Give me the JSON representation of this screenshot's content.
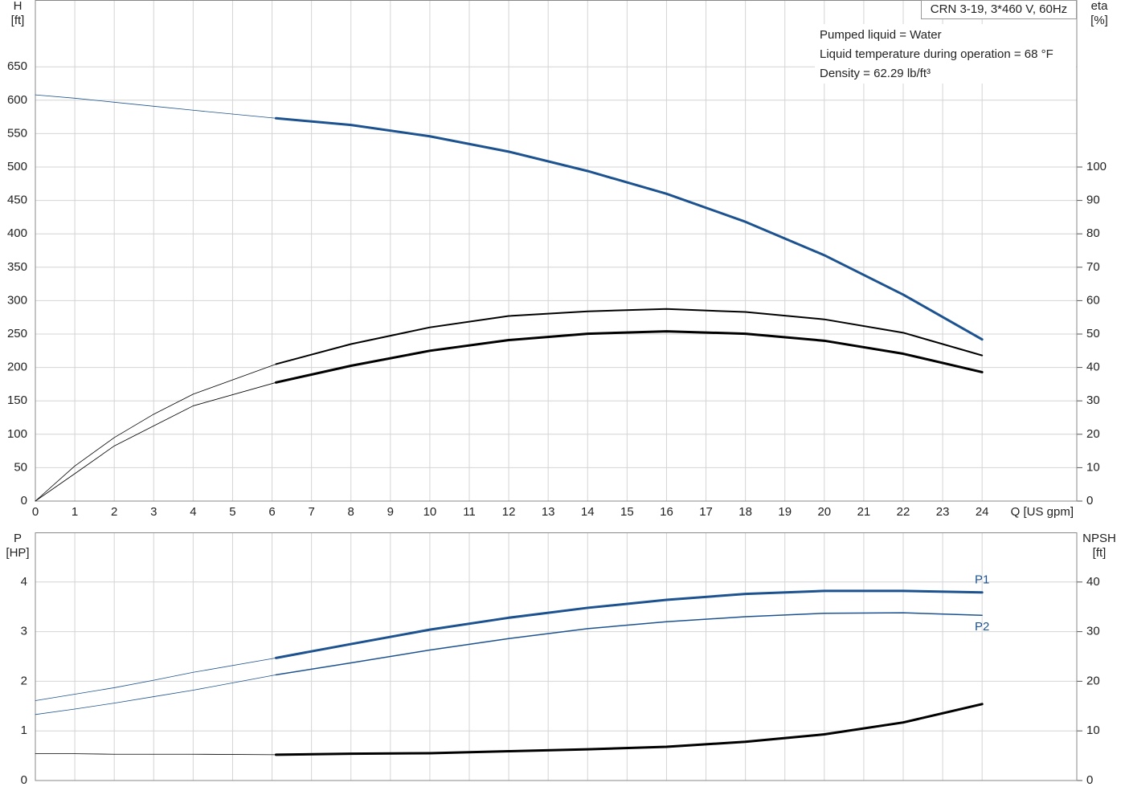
{
  "chart_data": [
    {
      "type": "line",
      "title": "CRN 3-19, 3*460 V, 60Hz",
      "annotations": [
        "Pumped liquid = Water",
        "Liquid temperature during operation = 68 °F",
        "Density = 62.29 lb/ft³"
      ],
      "ylabel": [
        "H",
        "[ft]"
      ],
      "y2label": [
        "eta",
        "[%]"
      ],
      "xlabel": "Q [US gpm]",
      "x": [
        0,
        1,
        2,
        3,
        4,
        6.1,
        8,
        10,
        12,
        14,
        16,
        18,
        20,
        22,
        24
      ],
      "xlim": [
        0,
        26.4
      ],
      "xticks": [
        0,
        1,
        2,
        3,
        4,
        5,
        6,
        7,
        8,
        9,
        10,
        11,
        12,
        13,
        14,
        15,
        16,
        17,
        18,
        19,
        20,
        21,
        22,
        23,
        24
      ],
      "xtick_labels": true,
      "ylim": [
        0,
        750
      ],
      "yticks": [
        0,
        50,
        100,
        150,
        200,
        250,
        300,
        350,
        400,
        450,
        500,
        550,
        600,
        650
      ],
      "y2lim": [
        0,
        150
      ],
      "y2ticks": [
        0,
        10,
        20,
        30,
        40,
        50,
        60,
        70,
        80,
        90,
        100
      ],
      "grid": true,
      "series": [
        {
          "color": "#1c5290",
          "line_width": 0.8,
          "values": [
            608,
            603,
            597,
            591,
            585,
            573,
            null,
            null,
            null,
            null,
            null,
            null,
            null,
            null,
            null
          ]
        },
        {
          "color": "#1c5290",
          "line_width": 3,
          "values": [
            null,
            null,
            null,
            null,
            null,
            573,
            563,
            546,
            523,
            494,
            460,
            418,
            368,
            309,
            242
          ]
        },
        {
          "color": "#000000",
          "line_width": 0.8,
          "axis": "y2",
          "values": [
            0,
            10.5,
            19,
            26,
            32,
            41,
            null,
            null,
            null,
            null,
            null,
            null,
            null,
            null,
            null
          ]
        },
        {
          "color": "#000000",
          "line_width": 2,
          "axis": "y2",
          "values": [
            null,
            null,
            null,
            null,
            null,
            41,
            47,
            52,
            55.4,
            56.8,
            57.5,
            56.6,
            54.4,
            50.4,
            43.6
          ]
        },
        {
          "color": "#000000",
          "line_width": 0.8,
          "axis": "y2",
          "values": [
            0,
            8.2,
            16.5,
            22.5,
            28.5,
            35.5,
            null,
            null,
            null,
            null,
            null,
            null,
            null,
            null,
            null
          ]
        },
        {
          "color": "#000000",
          "line_width": 3,
          "axis": "y2",
          "values": [
            null,
            null,
            null,
            null,
            null,
            35.5,
            40.5,
            45,
            48.2,
            50.1,
            50.8,
            50.1,
            48,
            44.1,
            38.6
          ]
        }
      ]
    },
    {
      "type": "line",
      "ylabel": [
        "P",
        "[HP]"
      ],
      "y2label": [
        "NPSH",
        "[ft]"
      ],
      "x": [
        0,
        1,
        2,
        3,
        4,
        6.1,
        8,
        10,
        12,
        14,
        16,
        18,
        20,
        22,
        24
      ],
      "xlim": [
        0,
        26.4
      ],
      "xticks": [
        0,
        1,
        2,
        3,
        4,
        5,
        6,
        7,
        8,
        9,
        10,
        11,
        12,
        13,
        14,
        15,
        16,
        17,
        18,
        19,
        20,
        21,
        22,
        23,
        24
      ],
      "xtick_labels": false,
      "ylim": [
        0,
        5
      ],
      "yticks": [
        0,
        1,
        2,
        3,
        4
      ],
      "y2lim": [
        0,
        50
      ],
      "y2ticks": [
        0,
        10,
        20,
        30,
        40
      ],
      "grid": true,
      "series": [
        {
          "color": "#1c5290",
          "line_width": 0.8,
          "values": [
            1.61,
            1.74,
            1.87,
            2.02,
            2.18,
            2.47,
            null,
            null,
            null,
            null,
            null,
            null,
            null,
            null,
            null
          ]
        },
        {
          "name": "P1",
          "color": "#1c5290",
          "line_width": 3,
          "values": [
            null,
            null,
            null,
            null,
            null,
            2.47,
            2.75,
            3.04,
            3.28,
            3.48,
            3.64,
            3.76,
            3.82,
            3.82,
            3.79
          ]
        },
        {
          "color": "#1c5290",
          "line_width": 0.8,
          "values": [
            1.33,
            1.44,
            1.56,
            1.69,
            1.82,
            2.13,
            null,
            null,
            null,
            null,
            null,
            null,
            null,
            null,
            null
          ]
        },
        {
          "name": "P2",
          "color": "#1c5290",
          "line_width": 1.5,
          "values": [
            null,
            null,
            null,
            null,
            null,
            2.13,
            2.37,
            2.63,
            2.86,
            3.06,
            3.2,
            3.3,
            3.37,
            3.38,
            3.33
          ]
        },
        {
          "color": "#000000",
          "line_width": 0.8,
          "axis": "y2",
          "values": [
            5.4,
            5.4,
            5.3,
            5.3,
            5.3,
            5.2,
            null,
            null,
            null,
            null,
            null,
            null,
            null,
            null,
            null
          ]
        },
        {
          "color": "#000000",
          "line_width": 3,
          "axis": "y2",
          "values": [
            null,
            null,
            null,
            null,
            null,
            5.2,
            5.4,
            5.5,
            5.9,
            6.3,
            6.8,
            7.8,
            9.3,
            11.7,
            15.4
          ]
        }
      ]
    }
  ]
}
